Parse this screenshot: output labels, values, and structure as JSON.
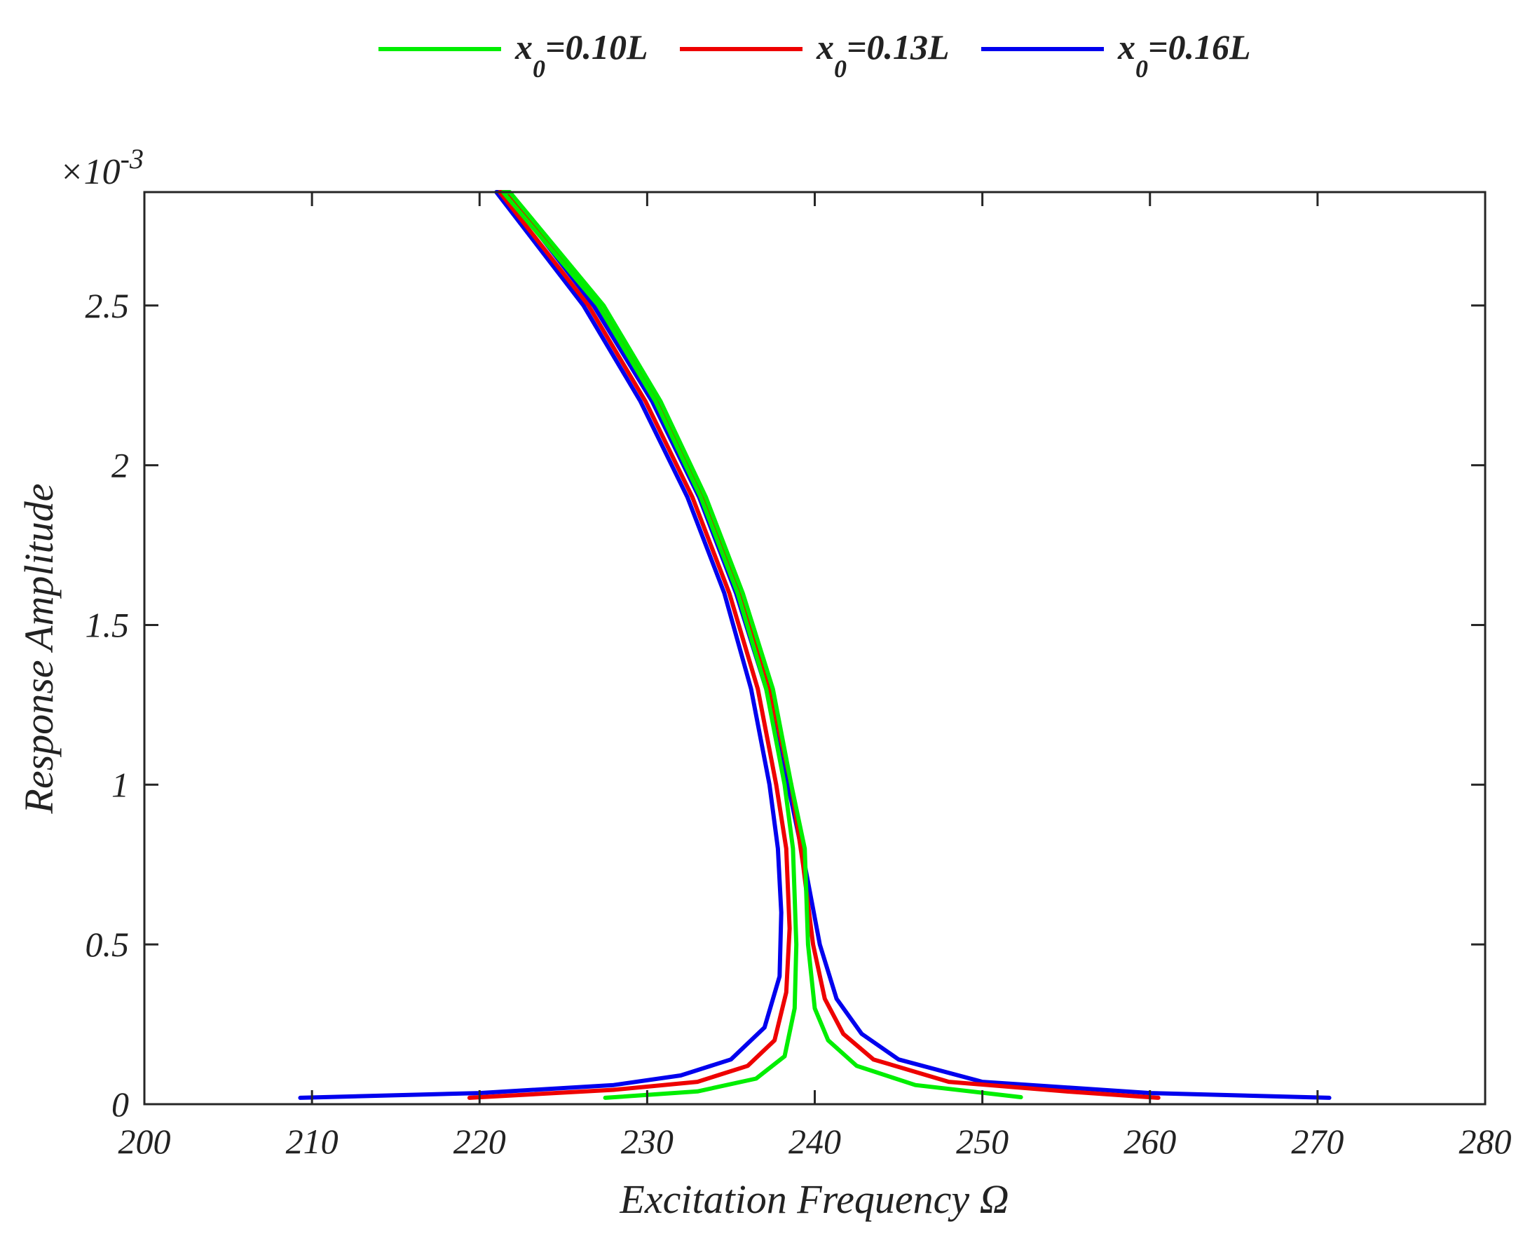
{
  "chart_data": {
    "type": "line",
    "xlabel": "Excitation Frequency Ω",
    "ylabel": "Response Amplitude",
    "y_multiplier_base": "×10",
    "y_multiplier_exponent": "-3",
    "xlim": [
      200,
      280
    ],
    "ylim": [
      0,
      2.855
    ],
    "xticks": [
      200,
      210,
      220,
      230,
      240,
      250,
      260,
      270,
      280
    ],
    "xtick_labels": [
      "200",
      "210",
      "220",
      "230",
      "240",
      "250",
      "260",
      "270",
      "280"
    ],
    "yticks": [
      0,
      0.5,
      1,
      1.5,
      2,
      2.5
    ],
    "ytick_labels": [
      "0",
      "0.5",
      "1",
      "1.5",
      "2",
      "2.5"
    ],
    "grid": false,
    "legend_position": "top-center-outside",
    "series": [
      {
        "name": "x0=0.10L",
        "name_var": "x",
        "name_sub": "0",
        "name_rest": "=0.10L",
        "color": "#00ee00",
        "x": [
          227.5,
          233,
          236.5,
          238.2,
          238.8,
          238.9,
          238.7,
          238.2,
          237.1,
          235.4,
          233.2,
          230.5,
          227.1,
          221.4,
          221.8,
          227.4,
          230.8,
          233.5,
          235.7,
          237.5,
          238.6,
          239.4,
          239.6,
          240.0,
          240.8,
          242.5,
          246,
          252.3
        ],
        "y": [
          0.02,
          0.04,
          0.08,
          0.15,
          0.3,
          0.5,
          0.8,
          1.0,
          1.3,
          1.6,
          1.9,
          2.2,
          2.5,
          2.855,
          2.855,
          2.5,
          2.2,
          1.9,
          1.6,
          1.3,
          1.0,
          0.8,
          0.5,
          0.3,
          0.2,
          0.12,
          0.06,
          0.022
        ]
      },
      {
        "name": "x0=0.13L",
        "name_var": "x",
        "name_sub": "0",
        "name_rest": "=0.13L",
        "color": "#ee0000",
        "x": [
          219.4,
          228,
          233,
          236,
          237.6,
          238.3,
          238.5,
          238.3,
          237.7,
          236.6,
          234.9,
          232.7,
          229.9,
          226.5,
          221.2,
          221.7,
          227.1,
          230.6,
          233.3,
          235.5,
          237.3,
          238.6,
          239.3,
          239.9,
          240.6,
          241.7,
          243.5,
          248,
          255,
          260.5
        ],
        "y": [
          0.02,
          0.045,
          0.07,
          0.12,
          0.2,
          0.35,
          0.55,
          0.8,
          1.0,
          1.3,
          1.6,
          1.9,
          2.2,
          2.5,
          2.855,
          2.855,
          2.5,
          2.2,
          1.9,
          1.6,
          1.3,
          1.0,
          0.75,
          0.5,
          0.33,
          0.22,
          0.14,
          0.07,
          0.04,
          0.02
        ]
      },
      {
        "name": "x0=0.16L",
        "name_var": "x",
        "name_sub": "0",
        "name_rest": "=0.16L",
        "color": "#0000ee",
        "x": [
          209.3,
          220,
          228,
          232,
          235,
          237,
          237.9,
          238.0,
          237.8,
          237.3,
          236.2,
          234.6,
          232.4,
          229.6,
          226.2,
          221.0,
          221.6,
          226.8,
          230.3,
          233.1,
          235.3,
          237.1,
          238.4,
          239.4,
          240.3,
          241.3,
          242.8,
          245,
          250,
          260,
          270.7
        ],
        "y": [
          0.02,
          0.035,
          0.06,
          0.09,
          0.14,
          0.24,
          0.4,
          0.6,
          0.8,
          1.0,
          1.3,
          1.6,
          1.9,
          2.2,
          2.5,
          2.855,
          2.855,
          2.5,
          2.2,
          1.9,
          1.6,
          1.3,
          1.0,
          0.75,
          0.5,
          0.33,
          0.22,
          0.14,
          0.07,
          0.035,
          0.02
        ]
      }
    ]
  }
}
